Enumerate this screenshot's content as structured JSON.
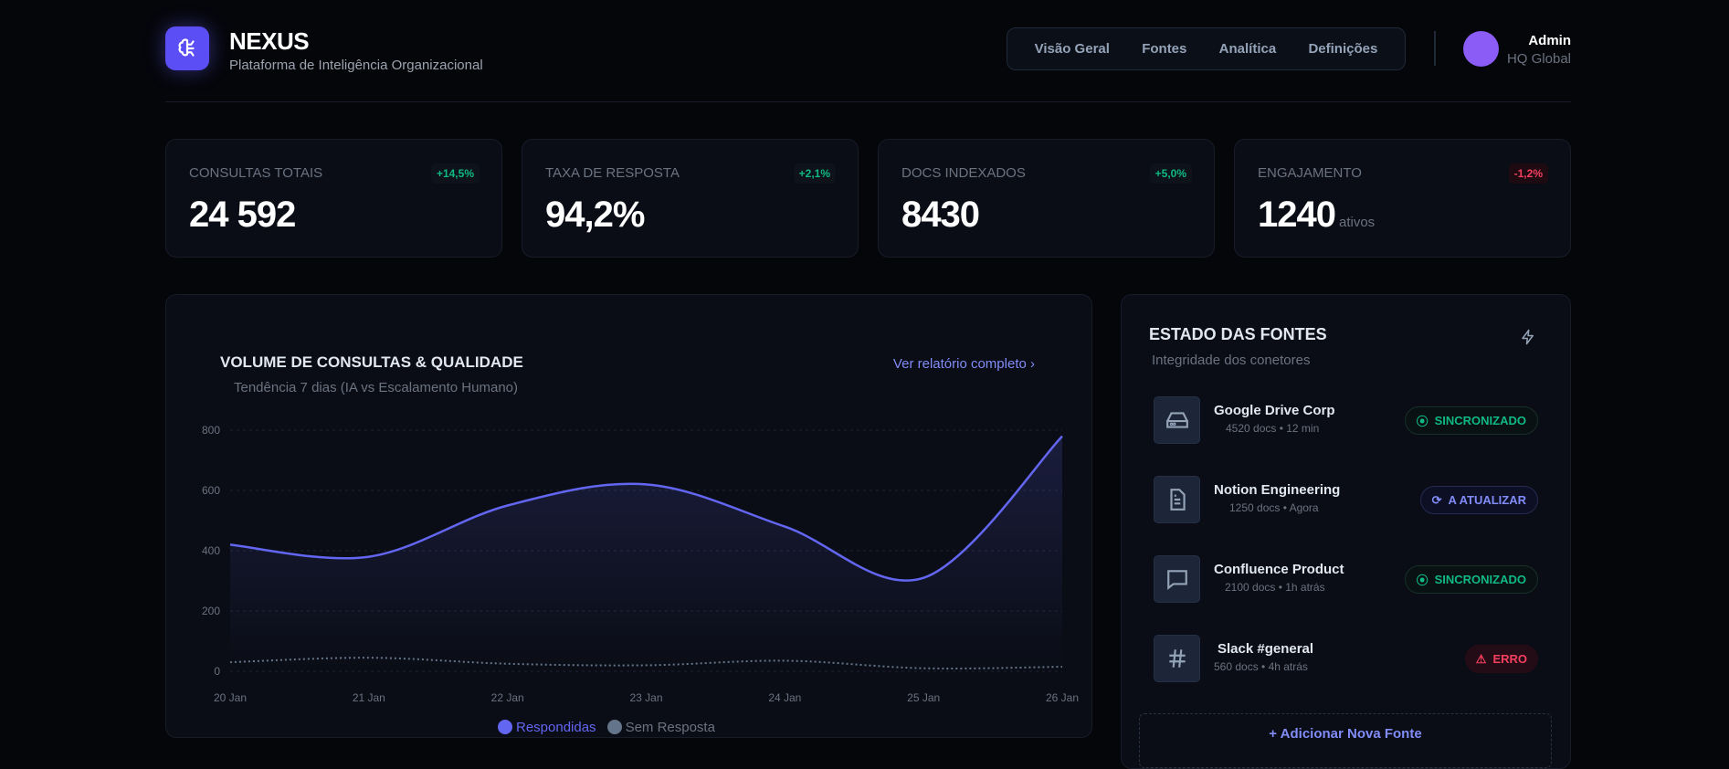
{
  "brand": {
    "title": "NEXUS",
    "subtitle": "Plataforma de Inteligência Organizacional",
    "icon": "brain-circuit-icon"
  },
  "nav": {
    "items": [
      "Visão Geral",
      "Fontes",
      "Analítica",
      "Definições"
    ]
  },
  "user": {
    "name": "Admin",
    "role": "HQ Global",
    "avatar_color": "#8b5cf6"
  },
  "stats": [
    {
      "label": "CONSULTAS TOTAIS",
      "value": "24 592",
      "delta": "+14,5%",
      "trend": "up"
    },
    {
      "label": "TAXA DE RESPOSTA",
      "value": "94,2%",
      "delta": "+2,1%",
      "trend": "up"
    },
    {
      "label": "DOCS INDEXADOS",
      "value": "8430",
      "delta": "+5,0%",
      "trend": "up"
    },
    {
      "label": "ENGAJAMENTO",
      "value": "1240",
      "unit": "ativos",
      "delta": "-1,2%",
      "trend": "down"
    }
  ],
  "chart": {
    "title": "VOLUME DE CONSULTAS & QUALIDADE",
    "subtitle": "Tendência 7 dias (IA vs Escalamento Humano)",
    "link": "Ver relatório completo",
    "link_icon": "chevron-right-icon"
  },
  "chart_data": {
    "type": "area",
    "categories": [
      "20 Jan",
      "21 Jan",
      "22 Jan",
      "23 Jan",
      "24 Jan",
      "25 Jan",
      "26 Jan"
    ],
    "ylim": [
      0,
      800
    ],
    "yticks": [
      "0",
      "200",
      "400",
      "600",
      "800"
    ],
    "grid": true,
    "legend": "bottom",
    "series": [
      {
        "name": "Respondidas",
        "values": [
          420,
          380,
          550,
          620,
          480,
          310,
          780
        ],
        "color": "#6366f1"
      },
      {
        "name": "Sem Resposta",
        "values": [
          30,
          45,
          25,
          20,
          35,
          10,
          15
        ],
        "color": "#64748b"
      }
    ]
  },
  "sources": {
    "title": "ESTADO DAS FONTES",
    "subtitle": "Integridade dos conetores",
    "header_icon": "lightning-icon",
    "items": [
      {
        "name": "Google Drive Corp",
        "meta": "4520 docs • 12 min",
        "status": "SINCRONIZADO",
        "icon": "hard-drive-icon",
        "kind": "sync"
      },
      {
        "name": "Notion Engineering",
        "meta": "1250 docs • Agora",
        "status": "A ATUALIZAR",
        "icon": "document-icon",
        "kind": "upd"
      },
      {
        "name": "Confluence Product",
        "meta": "2100 docs • 1h atrás",
        "status": "SINCRONIZADO",
        "icon": "message-square-icon",
        "kind": "sync"
      },
      {
        "name": "Slack #general",
        "meta": "560 docs • 4h atrás",
        "status": "ERRO",
        "icon": "hash-icon",
        "kind": "err"
      }
    ],
    "add_label": "+ Adicionar Nova Fonte"
  }
}
